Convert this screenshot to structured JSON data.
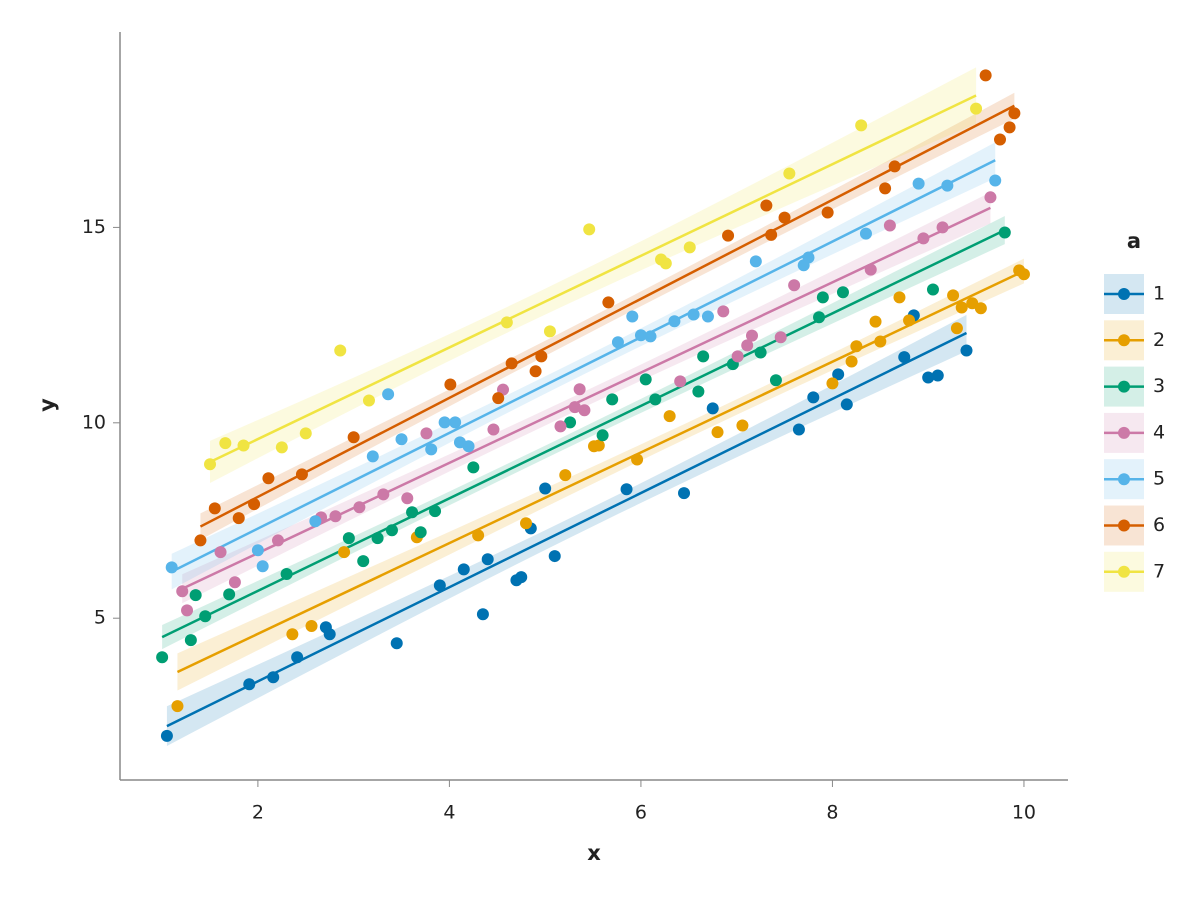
{
  "chart_data": {
    "type": "scatter",
    "x_label": "x",
    "y_label": "y",
    "legend_title": "a",
    "legend_position": "right",
    "xlim": [
      0.56,
      10.46
    ],
    "ylim": [
      0.86,
      20
    ],
    "xticks": [
      2,
      4,
      6,
      8,
      10
    ],
    "yticks": [
      5,
      10,
      15
    ],
    "grid": false,
    "trend_lines": true,
    "series": [
      {
        "name": "1",
        "color": "#0072b2",
        "x": [
          1.05,
          1.91,
          2.16,
          2.41,
          2.71,
          2.75,
          3.45,
          3.9,
          4.15,
          4.35,
          4.4,
          4.7,
          4.75,
          4.85,
          5.0,
          5.1,
          5.85,
          6.45,
          6.75,
          7.65,
          7.8,
          8.06,
          8.15,
          8.75,
          8.85,
          9.0,
          9.1,
          9.4
        ],
        "values": [
          1.99,
          3.31,
          3.49,
          4.0,
          4.77,
          4.59,
          4.36,
          5.84,
          6.25,
          5.1,
          6.51,
          5.97,
          6.05,
          7.3,
          8.32,
          6.59,
          8.3,
          8.2,
          10.37,
          9.83,
          10.65,
          11.24,
          10.47,
          11.68,
          12.75,
          11.16,
          11.21,
          11.85
        ]
      },
      {
        "name": "2",
        "color": "#e69f00",
        "x": [
          1.16,
          2.36,
          2.56,
          2.9,
          3.66,
          4.3,
          4.8,
          5.21,
          5.51,
          5.56,
          5.96,
          6.3,
          6.8,
          7.06,
          8.0,
          8.2,
          8.25,
          8.45,
          8.5,
          8.7,
          8.8,
          9.26,
          9.3,
          9.35,
          9.46,
          9.55,
          9.95,
          10.0
        ],
        "values": [
          2.75,
          4.59,
          4.8,
          6.69,
          7.07,
          7.12,
          7.43,
          8.66,
          9.4,
          9.42,
          9.06,
          10.17,
          9.76,
          9.93,
          11.01,
          11.57,
          11.96,
          12.59,
          12.08,
          13.21,
          12.62,
          13.26,
          12.42,
          12.95,
          13.06,
          12.93,
          13.9,
          13.8
        ]
      },
      {
        "name": "3",
        "color": "#009e73",
        "x": [
          1.0,
          1.3,
          1.35,
          1.45,
          1.7,
          2.3,
          2.95,
          3.1,
          3.25,
          3.4,
          3.61,
          3.7,
          3.85,
          4.25,
          5.26,
          5.6,
          5.7,
          6.05,
          6.15,
          6.6,
          6.65,
          6.96,
          7.25,
          7.41,
          7.86,
          7.9,
          8.11,
          9.05,
          9.8
        ],
        "values": [
          4.0,
          4.44,
          5.59,
          5.05,
          5.61,
          6.13,
          7.05,
          6.46,
          7.05,
          7.25,
          7.71,
          7.2,
          7.74,
          8.86,
          10.01,
          9.68,
          10.6,
          11.11,
          10.6,
          10.8,
          11.7,
          11.5,
          11.8,
          11.09,
          12.7,
          13.21,
          13.34,
          13.41,
          14.87
        ]
      },
      {
        "name": "4",
        "color": "#cc79a7",
        "x": [
          1.21,
          1.26,
          1.61,
          1.76,
          2.21,
          2.66,
          2.81,
          3.06,
          3.31,
          3.56,
          3.76,
          4.46,
          4.56,
          5.16,
          5.31,
          5.36,
          5.41,
          6.41,
          6.86,
          7.01,
          7.11,
          7.16,
          7.46,
          7.6,
          8.4,
          8.6,
          8.95,
          9.15,
          9.65
        ],
        "values": [
          5.69,
          5.2,
          6.69,
          5.92,
          6.99,
          7.58,
          7.61,
          7.84,
          8.17,
          8.07,
          9.73,
          9.83,
          10.85,
          9.91,
          10.4,
          10.86,
          10.32,
          11.06,
          12.85,
          11.7,
          11.98,
          12.23,
          12.19,
          13.52,
          13.92,
          15.05,
          14.72,
          15.0,
          15.77
        ]
      },
      {
        "name": "5",
        "color": "#56b4e9",
        "x": [
          1.1,
          2.0,
          2.05,
          2.6,
          3.2,
          3.36,
          3.5,
          3.81,
          3.95,
          4.06,
          4.11,
          4.2,
          5.76,
          5.91,
          6.0,
          6.1,
          6.35,
          6.55,
          6.7,
          7.2,
          7.7,
          7.75,
          8.35,
          8.9,
          9.2,
          9.7
        ],
        "values": [
          6.3,
          6.74,
          6.33,
          7.48,
          9.14,
          10.73,
          9.58,
          9.32,
          10.01,
          10.01,
          9.5,
          9.4,
          12.06,
          12.72,
          12.24,
          12.21,
          12.6,
          12.77,
          12.72,
          14.13,
          14.03,
          14.23,
          14.84,
          16.12,
          16.07,
          16.2
        ]
      },
      {
        "name": "6",
        "color": "#d55e00",
        "x": [
          1.4,
          1.55,
          1.8,
          1.96,
          2.11,
          2.46,
          3.0,
          4.01,
          4.51,
          4.65,
          4.9,
          4.96,
          5.66,
          6.91,
          7.31,
          7.36,
          7.5,
          7.95,
          8.55,
          8.65,
          9.6,
          9.75,
          9.85,
          9.9
        ],
        "values": [
          6.99,
          7.81,
          7.56,
          7.92,
          8.58,
          8.68,
          9.63,
          10.98,
          10.63,
          11.52,
          11.32,
          11.7,
          13.08,
          14.79,
          15.56,
          14.81,
          15.25,
          15.38,
          16.0,
          16.56,
          18.89,
          17.25,
          17.56,
          17.92
        ]
      },
      {
        "name": "7",
        "color": "#f0e442",
        "x": [
          1.5,
          1.66,
          1.85,
          2.25,
          2.5,
          2.86,
          3.16,
          4.6,
          5.05,
          5.46,
          6.21,
          6.26,
          6.51,
          7.55,
          8.3,
          9.5
        ],
        "values": [
          8.94,
          9.48,
          9.42,
          9.37,
          9.73,
          11.85,
          10.57,
          12.57,
          12.34,
          14.95,
          14.18,
          14.08,
          14.49,
          16.38,
          17.61,
          18.04
        ]
      }
    ]
  }
}
